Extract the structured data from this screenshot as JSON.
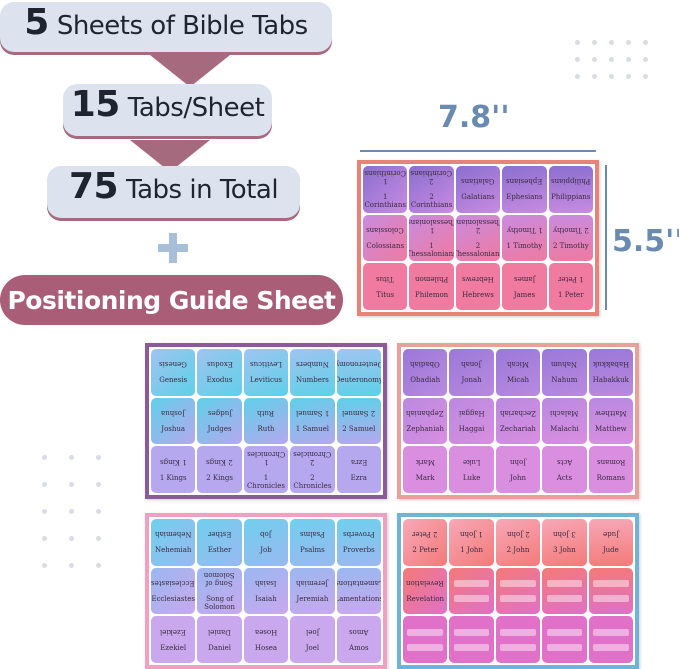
{
  "headline": [
    {
      "num": "5",
      "text": "Sheets of Bible Tabs"
    },
    {
      "num": "15",
      "text": "Tabs/Sheet"
    },
    {
      "num": "75",
      "text": "Tabs in Total"
    }
  ],
  "guide": "Positioning Guide Sheet",
  "width": "7.8''",
  "height": "5.5''",
  "sheets": [
    {
      "id": "nt-epistles",
      "border": "#e8837a",
      "colors": [
        "#8a6fd0",
        "#c98be0",
        "#f07aa0"
      ],
      "tabs": [
        "1 Corinthians",
        "2 Corinthians",
        "Galatians",
        "Ephesians",
        "Philippians",
        "Colossians",
        "1 Thessalonians",
        "2 Thessalonians",
        "1 Timothy",
        "2 Timothy",
        "Titus",
        "Philemon",
        "Hebrews",
        "James",
        "1 Peter"
      ]
    },
    {
      "id": "law-history",
      "border": "#8a5a9a",
      "colors": [
        "#9fc4f0",
        "#5fd0e8",
        "#b5a8ee"
      ],
      "tabs": [
        "Genesis",
        "Exodus",
        "Leviticus",
        "Numbers",
        "Deuteronomy",
        "Joshua",
        "Judges",
        "Ruth",
        "1 Samuel",
        "2 Samuel",
        "1 Kings",
        "2 Kings",
        "1 Chronicles",
        "2 Chronicles",
        "Ezra"
      ]
    },
    {
      "id": "prophets-gospels",
      "border": "#e8a09a",
      "colors": [
        "#9a78d8",
        "#b98ae0",
        "#d98ee0"
      ],
      "tabs": [
        "Obadiah",
        "Jonah",
        "Micah",
        "Nahum",
        "Habakkuk",
        "Zephaniah",
        "Haggai",
        "Zechariah",
        "Malachi",
        "Matthew",
        "Mark",
        "Luke",
        "John",
        "Acts",
        "Romans"
      ]
    },
    {
      "id": "wisdom-prophets",
      "border": "#f0a0c0",
      "colors": [
        "#6fd0ee",
        "#9ab8f0",
        "#c9a8ee"
      ],
      "tabs": [
        "Nehemiah",
        "Esther",
        "Job",
        "Psalms",
        "Proverbs",
        "Ecclesiastes",
        "Song of Solomon",
        "Isaiah",
        "Jeremiah",
        "Lamentations",
        "Ezekiel",
        "Daniel",
        "Hosea",
        "Joel",
        "Amos"
      ]
    },
    {
      "id": "final-blank",
      "border": "#6fb3d8",
      "colors": [
        "#f7a8b8",
        "#f47a78",
        "#e070c8"
      ],
      "tabs": [
        "2 Peter",
        "1 John",
        "2 John",
        "3 John",
        "Jude",
        "Revelation",
        null,
        null,
        null,
        null,
        null,
        null,
        null,
        null,
        null
      ]
    }
  ]
}
